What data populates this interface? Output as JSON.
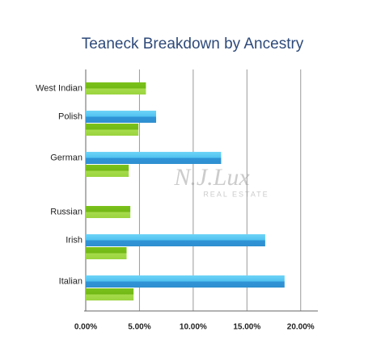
{
  "chart_data": {
    "type": "hbar",
    "title": "Teaneck Breakdown by Ancestry",
    "categories": [
      "West Indian",
      "Polish",
      "German",
      "Russian",
      "Irish",
      "Italian"
    ],
    "series": [
      {
        "color": "#3fa9e8",
        "values": [
          null,
          6.55,
          12.6,
          null,
          16.7,
          18.5
        ]
      },
      {
        "color": "#86c62e",
        "values": [
          5.6,
          4.9,
          4.0,
          4.15,
          3.8,
          4.45
        ]
      }
    ],
    "xlim": [
      0,
      21.6
    ],
    "xticks": [
      {
        "value": 0,
        "label": "0.00%"
      },
      {
        "value": 5,
        "label": "5.00%"
      },
      {
        "value": 10,
        "label": "10.00%"
      },
      {
        "value": 15,
        "label": "15.00%"
      },
      {
        "value": 20,
        "label": "20.00%"
      }
    ],
    "grid": true,
    "annotations": [
      "N.J.Lux",
      "REAL ESTATE"
    ]
  }
}
